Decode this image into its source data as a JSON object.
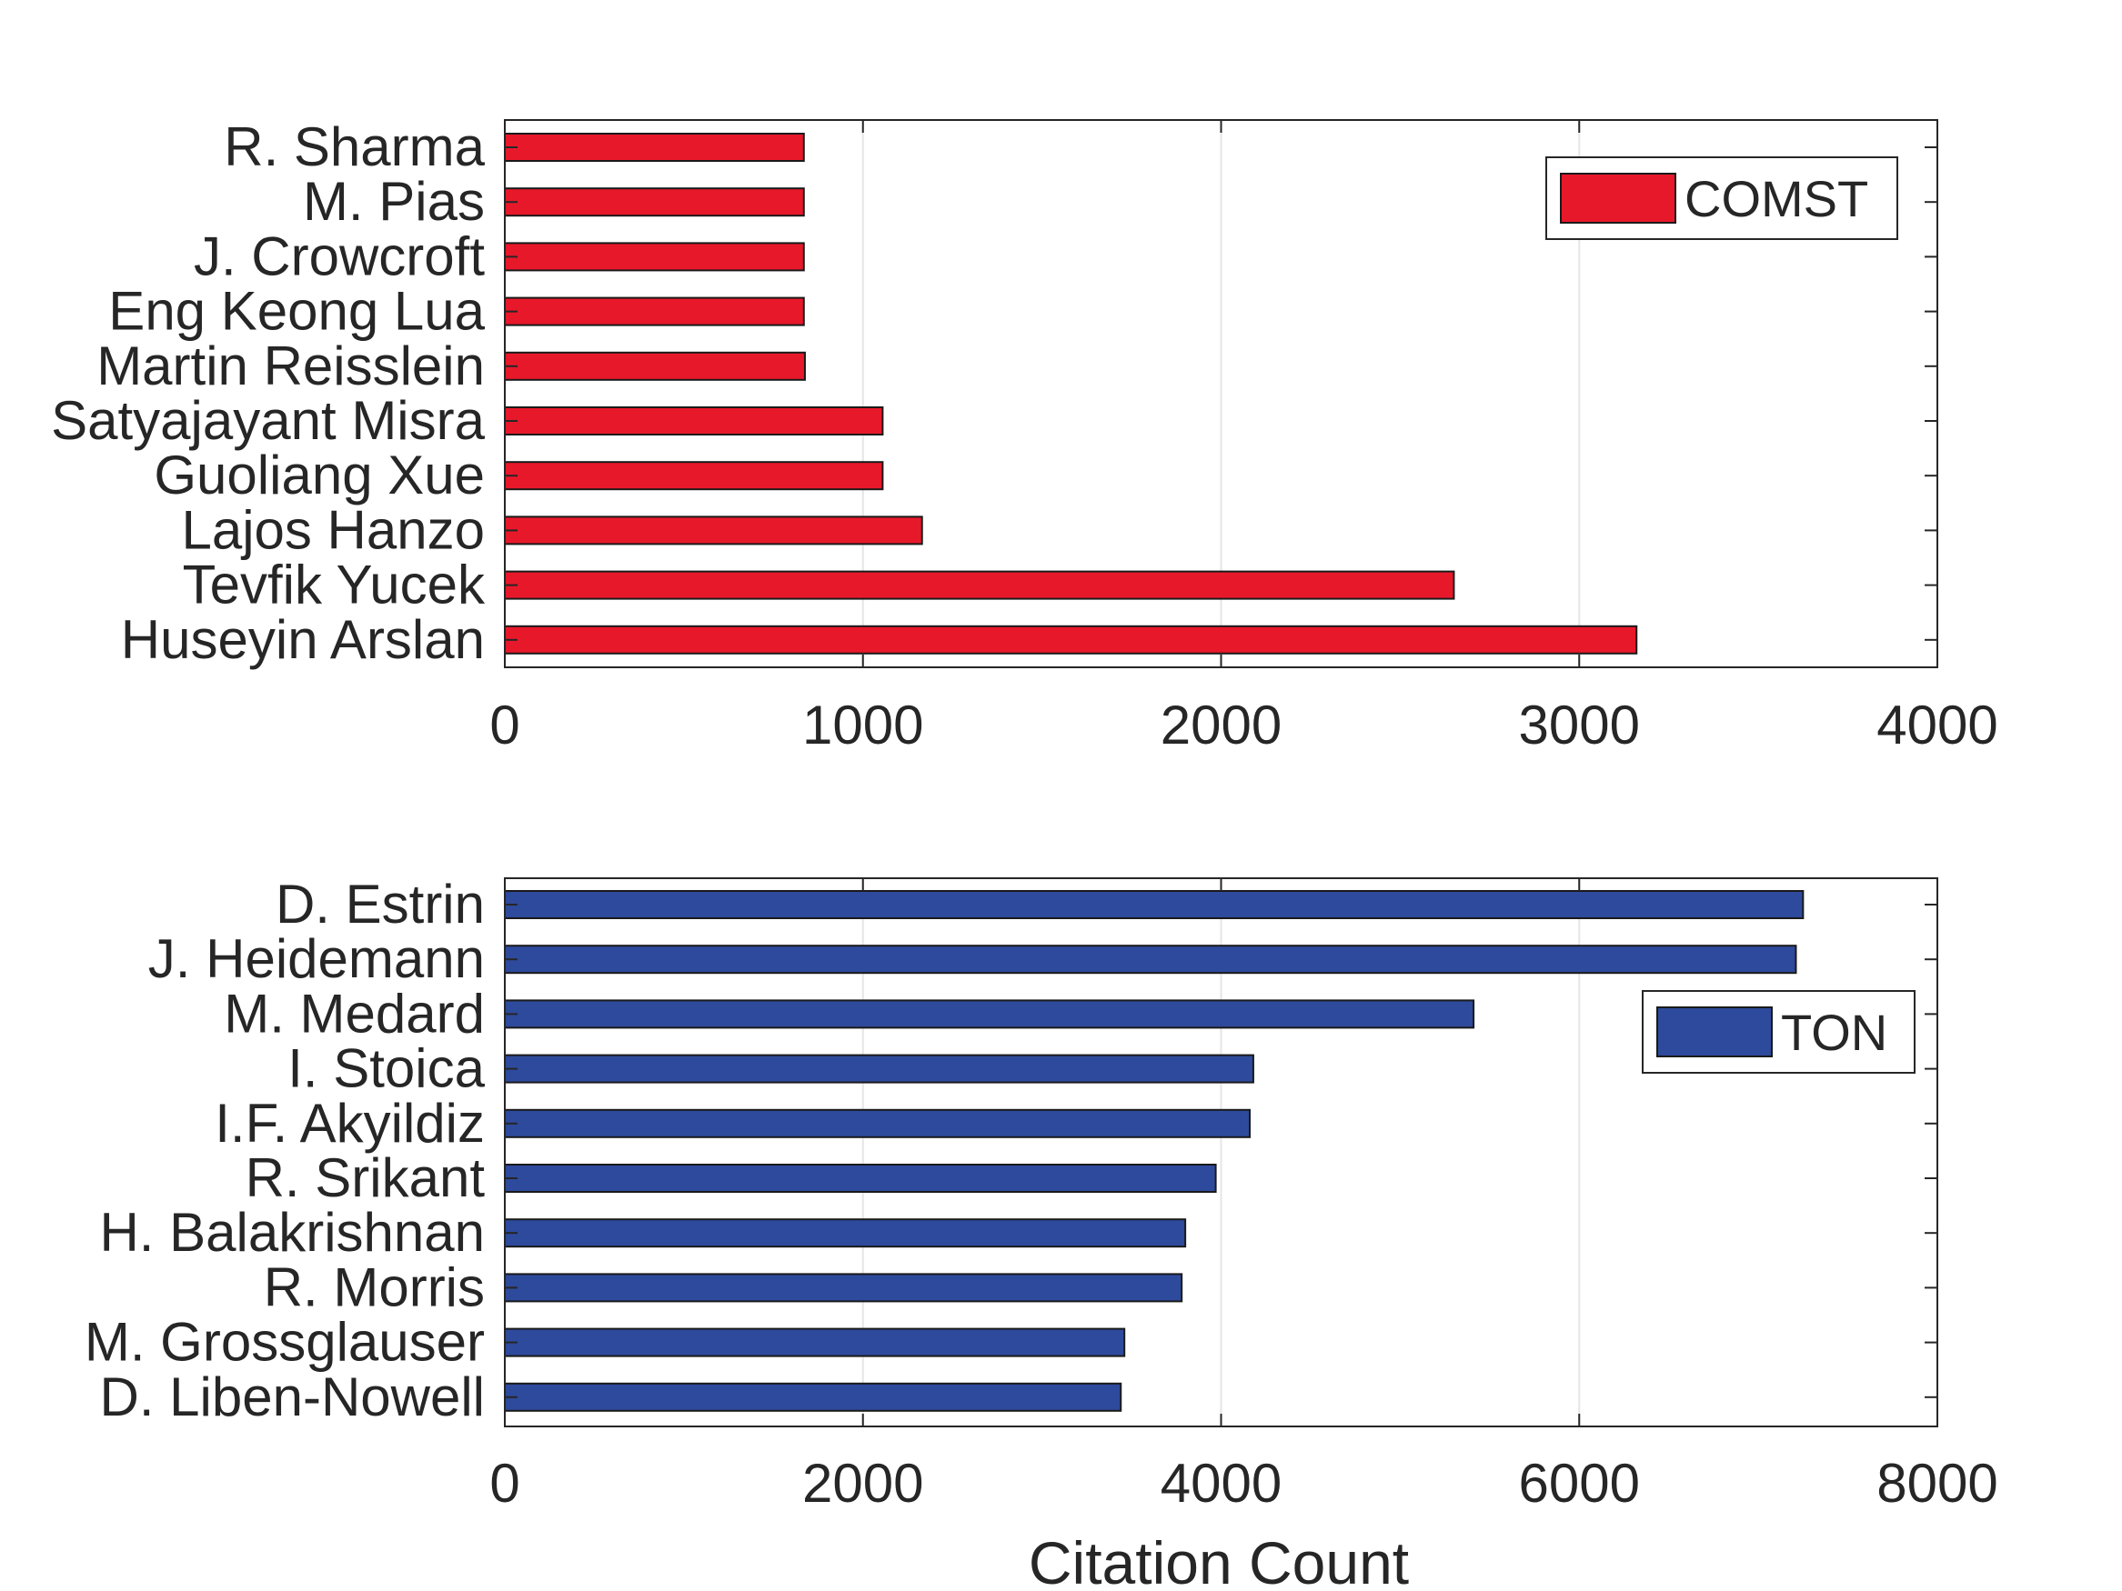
{
  "colors": {
    "comst": "#e8182b",
    "ton": "#2e4a9c",
    "bar_edge": "#1a1a1a",
    "axis": "#262626",
    "grid": "#e6e6e6"
  },
  "chart_data": [
    {
      "type": "bar",
      "orientation": "horizontal",
      "legend": "COMST",
      "legend_position": "top-right",
      "categories": [
        "R. Sharma",
        "M. Pias",
        "J. Crowcroft",
        "Eng Keong Lua",
        "Martin Reisslein",
        "Satyajayant Misra",
        "Guoliang Xue",
        "Lajos Hanzo",
        "Tevfik Yucek",
        "Huseyin Arslan"
      ],
      "values": [
        835,
        835,
        835,
        835,
        838,
        1055,
        1055,
        1165,
        2650,
        3160
      ],
      "xlim": [
        0,
        4000
      ],
      "xticks": [
        "0",
        "1000",
        "2000",
        "3000",
        "4000"
      ],
      "xlabel": "",
      "grid": "vertical"
    },
    {
      "type": "bar",
      "orientation": "horizontal",
      "legend": "TON",
      "legend_position": "top-right",
      "categories": [
        "D. Estrin",
        "J. Heidemann",
        "M. Medard",
        "I. Stoica",
        "I.F. Akyildiz",
        "R. Srikant",
        "H. Balakrishnan",
        "R. Morris",
        "M. Grossglauser",
        "D. Liben-Nowell"
      ],
      "values": [
        7250,
        7210,
        5410,
        4180,
        4160,
        3970,
        3800,
        3780,
        3460,
        3440
      ],
      "xlim": [
        0,
        8000
      ],
      "xticks": [
        "0",
        "2000",
        "4000",
        "6000",
        "8000"
      ],
      "xlabel": "Citation Count",
      "grid": "vertical"
    }
  ]
}
